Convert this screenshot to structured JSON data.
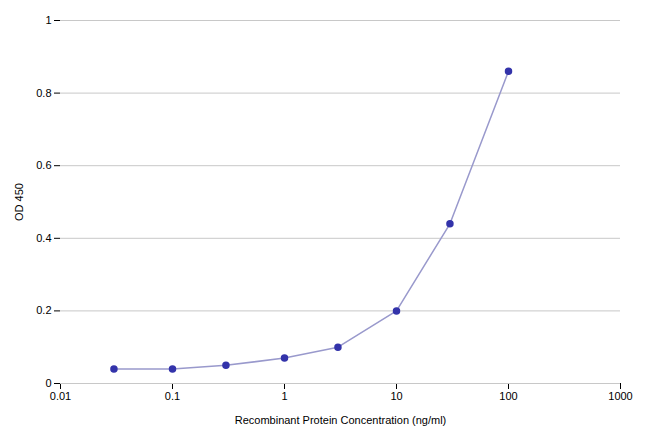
{
  "chart_data": {
    "type": "line",
    "x": [
      0.03,
      0.1,
      0.3,
      1.0,
      3.0,
      10.0,
      30.0,
      100.0
    ],
    "values": [
      0.04,
      0.04,
      0.05,
      0.07,
      0.1,
      0.2,
      0.44,
      0.86
    ],
    "color": "#9999cc",
    "colors": [
      "#3333aa",
      "#3333aa",
      "#3333aa",
      "#3333aa",
      "#3333aa",
      "#3333aa",
      "#3333aa",
      "#3333aa"
    ],
    "marker": "circle",
    "line_style": "solid",
    "x_label": "Recombinant Protein Concentration (ng/ml)",
    "y_label": "OD 450",
    "log": "x",
    "xlim": [
      0.01,
      1000
    ],
    "xticks": [
      0.01,
      0.1,
      1,
      10,
      100,
      1000
    ],
    "ylim": [
      0,
      1
    ],
    "yticks": [
      0,
      0.2,
      0.4,
      0.6,
      0.8,
      1
    ],
    "grid": "y"
  }
}
